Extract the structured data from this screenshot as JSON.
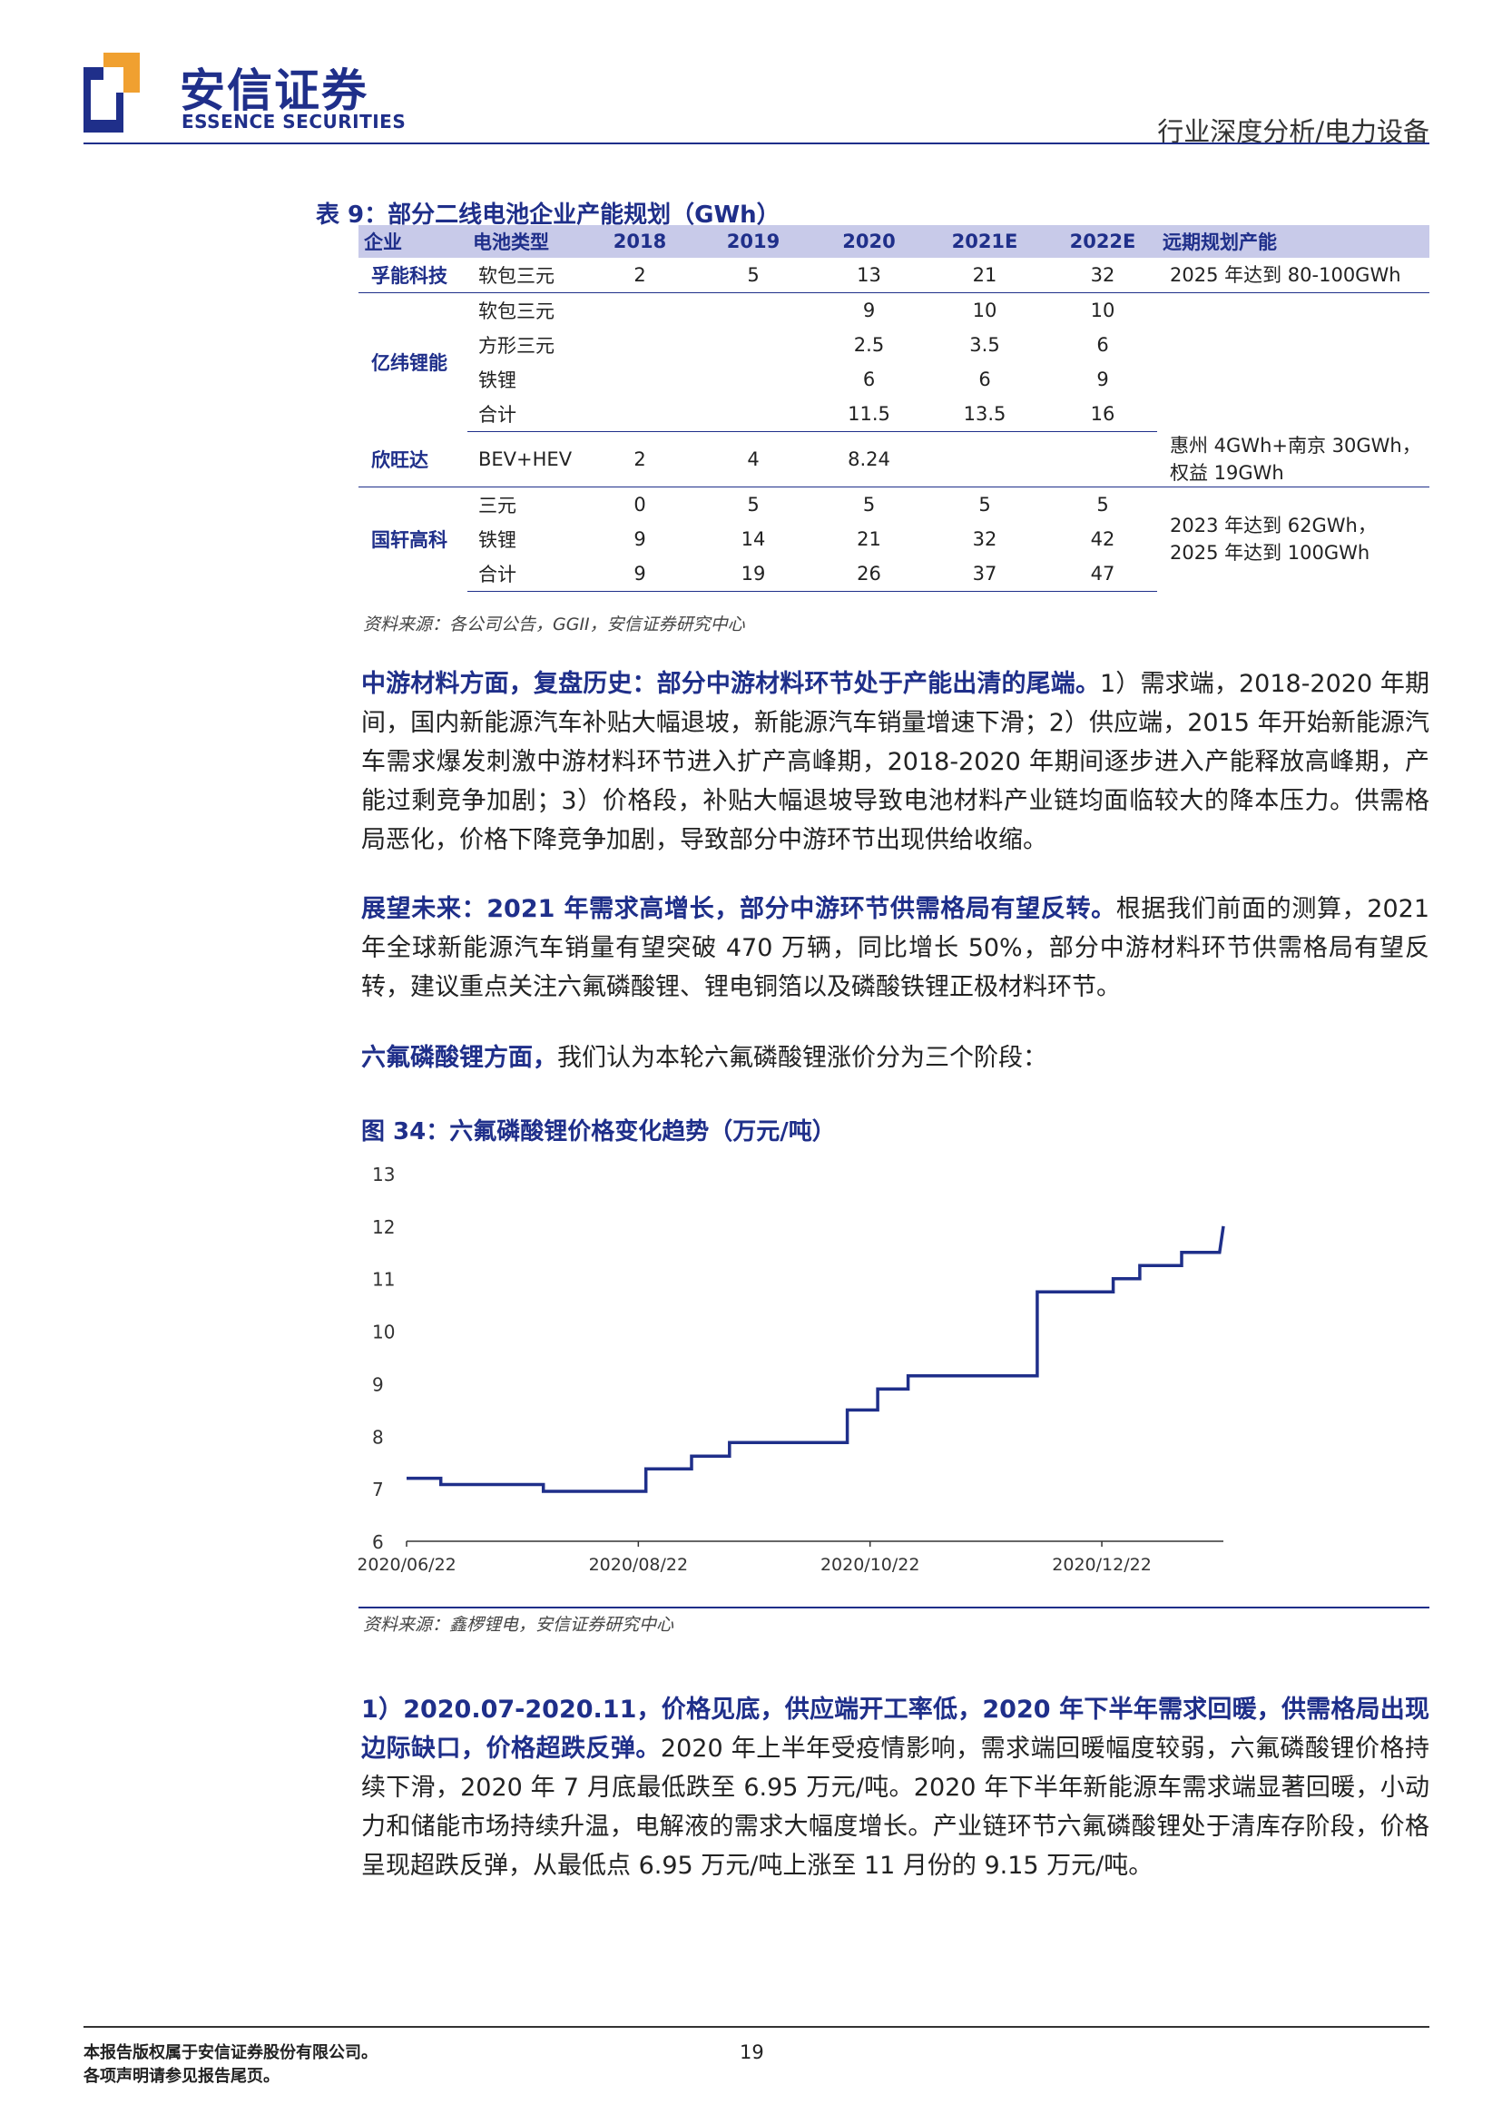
{
  "header": {
    "brand_cn": "安信证券",
    "brand_en": "ESSENCE SECURITIES",
    "report_type": "行业深度分析/电力设备",
    "brand_color": "#1f2f8a",
    "accent_color": "#f0a030"
  },
  "table": {
    "caption": "表 9：部分二线电池企业产能规划（GWh）",
    "columns": [
      "企业",
      "电池类型",
      "2018",
      "2019",
      "2020",
      "2021E",
      "2022E",
      "远期规划产能"
    ],
    "groups": [
      {
        "company": "孚能科技",
        "note": "2025 年达到 80-100GWh",
        "rows": [
          {
            "type": "软包三元",
            "2018": "2",
            "2019": "5",
            "2020": "13",
            "2021E": "21",
            "2022E": "32"
          }
        ]
      },
      {
        "company": "亿纬锂能",
        "note": "",
        "rows": [
          {
            "type": "软包三元",
            "2018": "",
            "2019": "",
            "2020": "9",
            "2021E": "10",
            "2022E": "10"
          },
          {
            "type": "方形三元",
            "2018": "",
            "2019": "",
            "2020": "2.5",
            "2021E": "3.5",
            "2022E": "6"
          },
          {
            "type": "铁锂",
            "2018": "",
            "2019": "",
            "2020": "6",
            "2021E": "6",
            "2022E": "9"
          },
          {
            "type": "合计",
            "2018": "",
            "2019": "",
            "2020": "11.5",
            "2021E": "13.5",
            "2022E": "16"
          }
        ]
      },
      {
        "company": "欣旺达",
        "note": "惠州 4GWh+南京 30GWh，权益 19GWh",
        "rows": [
          {
            "type": "BEV+HEV",
            "2018": "2",
            "2019": "4",
            "2020": "8.24",
            "2021E": "",
            "2022E": ""
          }
        ]
      },
      {
        "company": "国轩高科",
        "note": "2023 年达到 62GWh，2025 年达到 100GWh",
        "rows": [
          {
            "type": "三元",
            "2018": "0",
            "2019": "5",
            "2020": "5",
            "2021E": "5",
            "2022E": "5"
          },
          {
            "type": "铁锂",
            "2018": "9",
            "2019": "14",
            "2020": "21",
            "2021E": "32",
            "2022E": "42"
          },
          {
            "type": "合计",
            "2018": "9",
            "2019": "19",
            "2020": "26",
            "2021E": "37",
            "2022E": "47"
          }
        ]
      }
    ],
    "source": "资料来源：各公司公告，GGII，安信证券研究中心"
  },
  "paragraphs": {
    "p1_bold": "中游材料方面，复盘历史：部分中游材料环节处于产能出清的尾端。",
    "p1_text": "1）需求端，2018-2020 年期间，国内新能源汽车补贴大幅退坡，新能源汽车销量增速下滑；2）供应端，2015 年开始新能源汽车需求爆发刺激中游材料环节进入扩产高峰期，2018-2020 年期间逐步进入产能释放高峰期，产能过剩竞争加剧；3）价格段，补贴大幅退坡导致电池材料产业链均面临较大的降本压力。供需格局恶化，价格下降竞争加剧，导致部分中游环节出现供给收缩。",
    "p2_bold": "展望未来：2021 年需求高增长，部分中游环节供需格局有望反转。",
    "p2_text": "根据我们前面的测算，2021 年全球新能源汽车销量有望突破 470 万辆，同比增长 50%，部分中游材料环节供需格局有望反转，建议重点关注六氟磷酸锂、锂电铜箔以及磷酸铁锂正极材料环节。",
    "p3_bold": "六氟磷酸锂方面，",
    "p3_text": "我们认为本轮六氟磷酸锂涨价分为三个阶段：",
    "p4_bold": "1）2020.07-2020.11，价格见底，供应端开工率低，2020 年下半年需求回暖，供需格局出现边际缺口，价格超跌反弹。",
    "p4_text": "2020 年上半年受疫情影响，需求端回暖幅度较弱，六氟磷酸锂价格持续下滑，2020 年 7 月底最低跌至 6.95 万元/吨。2020 年下半年新能源车需求端显著回暖，小动力和储能市场持续升温，电解液的需求大幅度增长。产业链环节六氟磷酸锂处于清库存阶段，价格呈现超跌反弹，从最低点 6.95 万元/吨上涨至 11 月份的 9.15 万元/吨。"
  },
  "figure": {
    "title": "图 34：六氟磷酸锂价格变化趋势（万元/吨）",
    "source": "资料来源：鑫椤锂电，安信证券研究中心"
  },
  "chart_data": {
    "type": "line",
    "title": "",
    "xlabel": "",
    "ylabel": "",
    "ylim": [
      6,
      13
    ],
    "yticks": [
      "6",
      "7",
      "8",
      "9",
      "10",
      "11",
      "12",
      "13"
    ],
    "xticks": [
      "2020/06/22",
      "2020/08/22",
      "2020/10/22",
      "2020/12/22"
    ],
    "xrange": [
      "2020/06/22",
      "2021/01/23"
    ],
    "grid": false,
    "legend": "none",
    "line_color": "#1f2f8a",
    "series": [
      {
        "x": [
          "2020/06/22",
          "2020/07/01",
          "2020/07/01",
          "2020/07/28",
          "2020/07/28",
          "2020/08/24",
          "2020/08/24",
          "2020/09/05",
          "2020/09/05",
          "2020/09/15",
          "2020/09/15",
          "2020/09/30",
          "2020/09/30",
          "2020/10/16",
          "2020/10/16",
          "2020/10/24",
          "2020/10/24",
          "2020/11/01",
          "2020/11/01",
          "2020/11/05",
          "2020/11/05",
          "2020/12/05",
          "2020/12/05",
          "2020/12/25",
          "2020/12/25",
          "2021/01/01",
          "2021/01/01",
          "2021/01/12",
          "2021/01/12",
          "2021/01/15",
          "2021/01/15",
          "2021/01/22",
          "2021/01/23"
        ],
        "y": [
          7.2,
          7.2,
          7.08,
          7.08,
          6.95,
          6.95,
          7.38,
          7.38,
          7.62,
          7.62,
          7.88,
          7.88,
          7.88,
          7.88,
          8.5,
          8.5,
          8.9,
          8.9,
          9.15,
          9.15,
          9.15,
          9.15,
          10.75,
          10.75,
          11.0,
          11.0,
          11.25,
          11.25,
          11.5,
          11.5,
          11.5,
          11.5,
          12.0
        ]
      }
    ]
  },
  "footer": {
    "line1": "本报告版权属于安信证券股份有限公司。",
    "line2": "各项声明请参见报告尾页。",
    "page_number": "19"
  }
}
